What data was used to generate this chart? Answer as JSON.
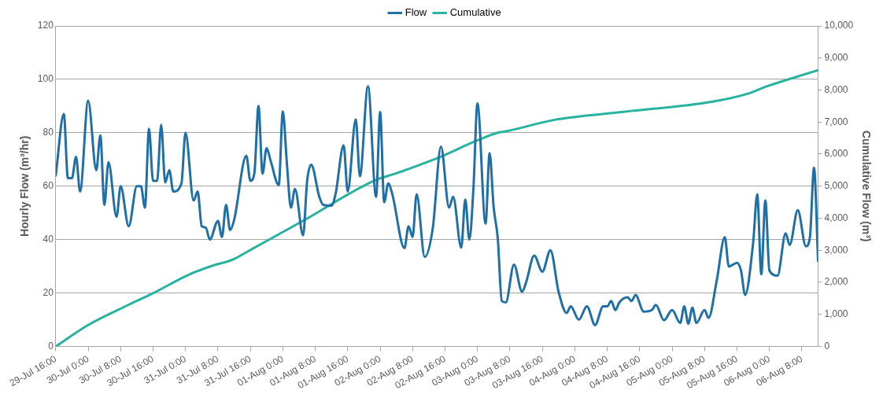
{
  "chart_data": {
    "type": "line",
    "xlim": [
      "--07-29T16:00",
      "--08-06T12:00"
    ],
    "xticks": [
      {
        "value": "--07-29T16:00",
        "label": "29-Jul 16:00"
      },
      {
        "value": "--07-30T00:00",
        "label": "30-Jul 0:00"
      },
      {
        "value": "--07-30T08:00",
        "label": "30-Jul 8:00"
      },
      {
        "value": "--07-30T16:00",
        "label": "30-Jul 16:00"
      },
      {
        "value": "--07-31T00:00",
        "label": "31-Jul 0:00"
      },
      {
        "value": "--07-31T08:00",
        "label": "31-Jul 8:00"
      },
      {
        "value": "--07-31T16:00",
        "label": "31-Jul 16:00"
      },
      {
        "value": "--08-01T00:00",
        "label": "01-Aug 0:00"
      },
      {
        "value": "--08-01T08:00",
        "label": "01-Aug 8:00"
      },
      {
        "value": "--08-01T16:00",
        "label": "01-Aug 16:00"
      },
      {
        "value": "--08-02T00:00",
        "label": "02-Aug 0:00"
      },
      {
        "value": "--08-02T08:00",
        "label": "02-Aug 8:00"
      },
      {
        "value": "--08-02T16:00",
        "label": "02-Aug 16:00"
      },
      {
        "value": "--08-03T00:00",
        "label": "03-Aug 0:00"
      },
      {
        "value": "--08-03T08:00",
        "label": "03-Aug 8:00"
      },
      {
        "value": "--08-03T16:00",
        "label": "03-Aug 16:00"
      },
      {
        "value": "--08-04T00:00",
        "label": "04-Aug 0:00"
      },
      {
        "value": "--08-04T08:00",
        "label": "04-Aug 8:00"
      },
      {
        "value": "--08-04T16:00",
        "label": "04-Aug 16:00"
      },
      {
        "value": "--08-05T00:00",
        "label": "05-Aug 0:00"
      },
      {
        "value": "--08-05T08:00",
        "label": "05-Aug 8:00"
      },
      {
        "value": "--08-05T16:00",
        "label": "05-Aug 16:00"
      },
      {
        "value": "--08-06T00:00",
        "label": "06-Aug 0:00"
      },
      {
        "value": "--08-06T08:00",
        "label": "06-Aug 8:00"
      }
    ],
    "ylabel": "Hourly Flow (m³/hr)",
    "y2label": "Cumulative Flow (m³)",
    "ylim": [
      0,
      120
    ],
    "yticks": [
      0,
      20,
      40,
      60,
      80,
      100,
      120
    ],
    "y2lim": [
      0,
      10000
    ],
    "y2ticks": [
      0,
      {
        "value": 1000,
        "label": "1,000"
      },
      {
        "value": 2000,
        "label": "2,000"
      },
      {
        "value": 3000,
        "label": "3,000"
      },
      {
        "value": 4000,
        "label": "4,000"
      },
      {
        "value": 5000,
        "label": "5,000"
      },
      {
        "value": 6000,
        "label": "6,000"
      },
      {
        "value": 7000,
        "label": "7,000"
      },
      {
        "value": 8000,
        "label": "8,000"
      },
      {
        "value": 9000,
        "label": "9,000"
      },
      {
        "value": 10000,
        "label": "10,000"
      }
    ],
    "grid": "y",
    "legend": "top",
    "marker": "none",
    "line_style": "solid",
    "series": [
      {
        "name": "Flow",
        "color": "#1f6fa8",
        "x": [
          "--07-29T16:00",
          "--07-29T18:00",
          "--07-29T19:00",
          "--07-29T20:00",
          "--07-29T21:00",
          "--07-29T22:00",
          "--07-30T00:00",
          "--07-30T02:00",
          "--07-30T03:00",
          "--07-30T04:00",
          "--07-30T05:00",
          "--07-30T07:00",
          "--07-30T08:00",
          "--07-30T10:00",
          "--07-30T12:00",
          "--07-30T13:00",
          "--07-30T14:00",
          "--07-30T15:00",
          "--07-30T16:00",
          "--07-30T17:00",
          "--07-30T18:00",
          "--07-30T19:00",
          "--07-30T20:00",
          "--07-30T21:00",
          "--07-30T23:00",
          "--07-31T00:00",
          "--07-31T02:00",
          "--07-31T03:00",
          "--07-31T04:00",
          "--07-31T05:00",
          "--07-31T06:00",
          "--07-31T08:00",
          "--07-31T09:00",
          "--07-31T10:00",
          "--07-31T11:00",
          "--07-31T12:00",
          "--07-31T15:00",
          "--07-31T16:00",
          "--07-31T17:00",
          "--07-31T18:00",
          "--07-31T19:00",
          "--07-31T20:00",
          "--07-31T21:00",
          "--07-31T23:00",
          "--08-01T00:00",
          "--08-01T01:00",
          "--08-01T02:00",
          "--08-01T03:00",
          "--08-01T05:00",
          "--08-01T06:00",
          "--08-01T07:00",
          "--08-01T09:00",
          "--08-01T10:00",
          "--08-01T12:00",
          "--08-01T13:00",
          "--08-01T15:00",
          "--08-01T16:00",
          "--08-01T18:00",
          "--08-01T19:00",
          "--08-01T21:00",
          "--08-01T23:00",
          "--08-02T00:00",
          "--08-02T01:00",
          "--08-02T02:00",
          "--08-02T03:00",
          "--08-02T06:00",
          "--08-02T07:00",
          "--08-02T08:00",
          "--08-02T09:00",
          "--08-02T11:00",
          "--08-02T13:00",
          "--08-02T15:00",
          "--08-02T17:00",
          "--08-02T18:00",
          "--08-02T20:00",
          "--08-02T21:00",
          "--08-02T22:00",
          "--08-02T23:00",
          "--08-03T00:00",
          "--08-03T02:00",
          "--08-03T03:00",
          "--08-03T04:00",
          "--08-03T05:00",
          "--08-03T06:00",
          "--08-03T07:00",
          "--08-03T09:00",
          "--08-03T11:00",
          "--08-03T12:00",
          "--08-03T14:00",
          "--08-03T16:00",
          "--08-03T18:00",
          "--08-03T20:00",
          "--08-03T22:00",
          "--08-03T23:00",
          "--08-04T01:00",
          "--08-04T03:00",
          "--08-04T05:00",
          "--08-04T07:00",
          "--08-04T08:00",
          "--08-04T09:00",
          "--08-04T10:00",
          "--08-04T11:00",
          "--08-04T13:00",
          "--08-04T14:00",
          "--08-04T15:00",
          "--08-04T17:00",
          "--08-04T19:00",
          "--08-04T20:00",
          "--08-04T22:00",
          "--08-05T00:00",
          "--08-05T02:00",
          "--08-05T03:00",
          "--08-05T04:00",
          "--08-05T05:00",
          "--08-05T06:00",
          "--08-05T08:00",
          "--08-05T09:00",
          "--08-05T11:00",
          "--08-05T13:00",
          "--08-05T14:00",
          "--08-05T16:00",
          "--08-05T17:00",
          "--08-05T18:00",
          "--08-05T20:00",
          "--08-05T21:00",
          "--08-05T22:00",
          "--08-05T23:00",
          "--08-06T00:00",
          "--08-06T02:00",
          "--08-06T04:00",
          "--08-06T05:00",
          "--08-06T07:00",
          "--08-06T09:00",
          "--08-06T10:00",
          "--08-06T11:00",
          "--08-06T12:00"
        ],
        "values": [
          64,
          87,
          63,
          63,
          71,
          58,
          92,
          66,
          79,
          53,
          69,
          48.5,
          60,
          45,
          60,
          60,
          52,
          81.5,
          62,
          62,
          83,
          61.4,
          66,
          58,
          61,
          80,
          54.6,
          58,
          45,
          44.5,
          40,
          47,
          41,
          53,
          43.6,
          47.4,
          71.4,
          62,
          65,
          90,
          64.7,
          74.3,
          69.5,
          60.4,
          88,
          68.6,
          52,
          59,
          41.6,
          62,
          68,
          56,
          53,
          52.7,
          57,
          75.3,
          58,
          85,
          63.7,
          97.4,
          56,
          87.8,
          54,
          61,
          57,
          36.8,
          45,
          41,
          57,
          33.5,
          44.5,
          74.8,
          52,
          56,
          37,
          55,
          40,
          59,
          91,
          46,
          72.4,
          52,
          40.7,
          17,
          16.5,
          30.6,
          20.5,
          24,
          34,
          28,
          36,
          20.5,
          12.5,
          15,
          10,
          15,
          8,
          15,
          15,
          17,
          13.6,
          16.5,
          18.4,
          17,
          19.3,
          13,
          13.6,
          15.5,
          9.8,
          13.6,
          8.8,
          15,
          8.5,
          14.5,
          8.8,
          13.6,
          10.7,
          24.6,
          40.9,
          29.9,
          31.3,
          28.4,
          19.3,
          39,
          57,
          27,
          54.7,
          28.4,
          26.5,
          42.3,
          38,
          51,
          37.5,
          41,
          66.9,
          32
        ]
      },
      {
        "name": "Cumulative",
        "color": "#26b39f",
        "axis": "y2",
        "x": [
          "--07-29T16:00",
          "--07-30T00:00",
          "--07-30T10:00",
          "--07-30T16:00",
          "--07-31T01:00",
          "--07-31T06:00",
          "--07-31T12:00",
          "--07-31T16:00",
          "--08-01T05:00",
          "--08-01T23:00",
          "--08-02T04:00",
          "--08-02T10:00",
          "--08-02T14:00",
          "--08-03T00:00",
          "--08-03T05:00",
          "--08-03T07:00",
          "--08-03T19:00",
          "--08-04T12:00",
          "--08-05T10:00",
          "--08-05T19:00",
          "--08-05T23:00",
          "--08-06T11:00",
          "--08-06T12:00"
        ],
        "values": [
          0,
          670,
          1300,
          1660,
          2250,
          2490,
          2730,
          3010,
          3920,
          5200,
          5400,
          5680,
          5870,
          6430,
          6670,
          6710,
          7070,
          7320,
          7640,
          7900,
          8100,
          8580,
          8620
        ]
      }
    ]
  }
}
